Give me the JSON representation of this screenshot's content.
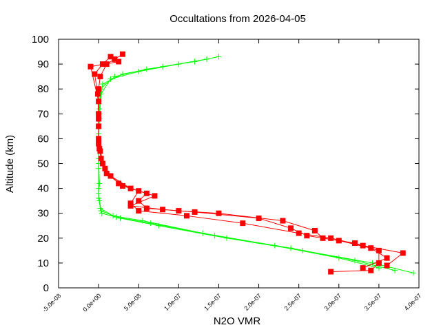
{
  "chart_data": {
    "type": "line",
    "title": "Occultations from 2026-04-05",
    "xlabel": "N2O VMR",
    "ylabel": "Altitude (km)",
    "xlim": [
      -5e-08,
      4e-07
    ],
    "ylim": [
      0,
      100
    ],
    "x_ticks": [
      -5e-08,
      0,
      5e-08,
      1e-07,
      1.5e-07,
      2e-07,
      2.5e-07,
      3e-07,
      3.5e-07,
      4e-07
    ],
    "x_tick_labels": [
      "-5.0e-08",
      "0.0e+00",
      "5.0e-08",
      "1.0e-07",
      "1.5e-07",
      "2.0e-07",
      "2.5e-07",
      "3.0e-07",
      "3.5e-07",
      "4.0e-07"
    ],
    "y_ticks": [
      0,
      10,
      20,
      30,
      40,
      50,
      60,
      70,
      80,
      90,
      100
    ],
    "y_tick_labels": [
      "0",
      "10",
      "20",
      "30",
      "40",
      "50",
      "60",
      "70",
      "80",
      "90",
      "100"
    ],
    "grid": false,
    "legend": "none",
    "series": [
      {
        "color": "#00ff00",
        "marker": "plus",
        "profiles": [
          {
            "x": [
              3.93e-07,
              3.42e-07,
              2.55e-07,
              1.6e-07,
              7.5e-08,
              2.7e-08,
              4e-09,
              1e-09,
              0,
              0,
              0,
              1e-09,
              2e-09,
              2e-08,
              6e-08,
              1.2e-07,
              1.5e-07
            ],
            "y": [
              6,
              10,
              15,
              20,
              25,
              28,
              30,
              35,
              40,
              50,
              60,
              70,
              80,
              85,
              88,
              91,
              93
            ]
          },
          {
            "x": [
              3.7e-07,
              3.2e-07,
              2.4e-07,
              1.45e-07,
              6.5e-08,
              2.2e-08,
              3e-09,
              0,
              1e-09,
              0,
              0,
              1e-09,
              5e-09,
              3e-08,
              8e-08,
              1.35e-07
            ],
            "y": [
              7,
              11,
              16,
              21,
              26,
              28.5,
              31,
              36,
              42,
              52,
              62,
              72,
              82,
              86,
              89,
              92
            ]
          },
          {
            "x": [
              3.5e-07,
              3e-07,
              2.2e-07,
              1.3e-07,
              5.5e-08,
              1.8e-08,
              2e-09,
              0,
              0,
              0,
              1e-09,
              3e-09,
              1.5e-08,
              5e-08,
              1e-07
            ],
            "y": [
              8,
              12,
              17,
              22,
              27,
              29,
              32,
              38,
              48,
              58,
              68,
              78,
              84,
              87,
              90
            ]
          }
        ]
      },
      {
        "color": "#ff0000",
        "marker": "square",
        "profiles": [
          {
            "x": [
              2.9e-07,
              3.4e-07,
              3.5e-07,
              3.5e-07,
              3.2e-07,
              2.8e-07,
              2.7e-07,
              2.3e-07,
              1.5e-07,
              1e-07,
              6e-08,
              5e-08,
              6e-08,
              4e-08,
              1.5e-08,
              5e-09,
              2e-09,
              0,
              0,
              0,
              2e-09,
              1e-08,
              2e-08,
              3e-08
            ],
            "y": [
              6.5,
              7,
              10,
              15,
              18,
              20,
              23,
              27,
              30,
              31,
              32,
              35,
              38,
              40,
              45,
              50,
              55,
              60,
              70,
              80,
              85,
              90,
              92,
              94
            ]
          },
          {
            "x": [
              3.3e-07,
              3.6e-07,
              3.4e-07,
              3e-07,
              2.6e-07,
              2.4e-07,
              2e-07,
              1.2e-07,
              8e-08,
              4e-08,
              7e-08,
              3e-08,
              1e-08,
              3e-09,
              0,
              0,
              -1e-09,
              -5e-09,
              5e-09,
              1.5e-08
            ],
            "y": [
              8,
              12,
              16,
              19,
              21,
              24,
              28,
              30.5,
              31.5,
              33,
              37,
              41,
              46,
              52,
              58,
              68,
              78,
              86,
              90,
              93
            ]
          },
          {
            "x": [
              3.6e-07,
              3.8e-07,
              3.3e-07,
              2.9e-07,
              2.5e-07,
              1.8e-07,
              1.1e-07,
              5e-08,
              4e-08,
              5e-08,
              2.5e-08,
              8e-09,
              1e-09,
              0,
              0,
              -1e-08,
              2.5e-08
            ],
            "y": [
              9,
              14,
              17,
              20,
              22,
              26,
              29,
              31,
              34,
              39,
              42,
              48,
              56,
              65,
              75,
              89,
              91
            ]
          }
        ]
      }
    ]
  }
}
